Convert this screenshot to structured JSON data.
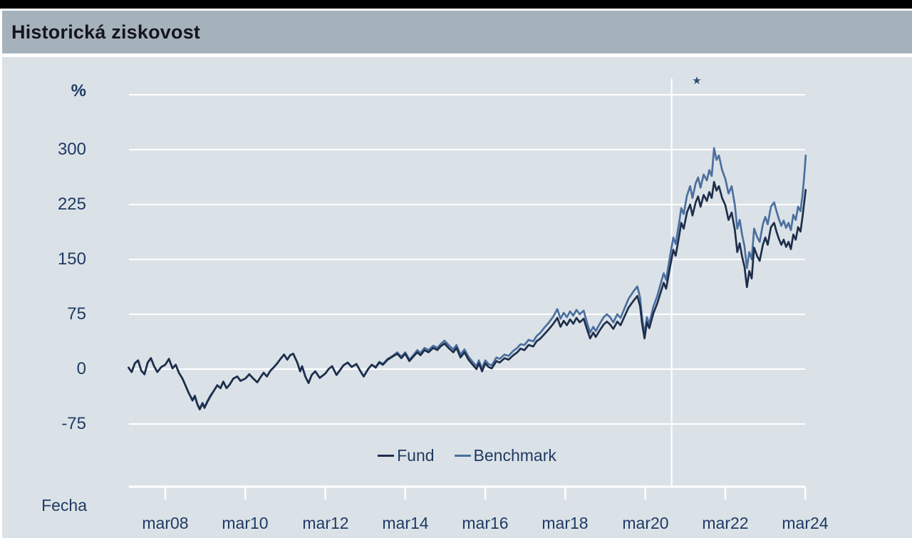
{
  "header": {
    "title": "Historická ziskovost"
  },
  "colors": {
    "topbar": "#000000",
    "header_bg": "#a6b2bb",
    "chart_bg": "#dbe2e7",
    "grid": "#ffffff",
    "axis_text": "#1f3a64",
    "fund_line": "#1d2e4b",
    "benchmark_line": "#4b6f9f"
  },
  "chart_data": {
    "type": "line",
    "title": "Historická ziskovost",
    "ylabel": "%",
    "xlabel": "Fecha",
    "grid": true,
    "legend_position": "bottom-inside",
    "x_tick_labels": [
      "mar08",
      "mar10",
      "mar12",
      "mar14",
      "mar16",
      "mar18",
      "mar20",
      "mar22",
      "mar24"
    ],
    "x_tick_years": [
      2008.2,
      2010.2,
      2012.2,
      2014.2,
      2016.2,
      2018.2,
      2020.2,
      2022.2,
      2024.2
    ],
    "y_ticks": [
      300,
      225,
      150,
      75,
      0,
      -75
    ],
    "grid_values": [
      375,
      300,
      225,
      150,
      75,
      0,
      -75
    ],
    "xlim": [
      2007.28,
      2024.21
    ],
    "ylim": [
      -160,
      375
    ],
    "annotations": {
      "vline_year": 2020.86,
      "star": {
        "symbol": "★",
        "year": 2021.49
      }
    },
    "series": [
      {
        "name": "Fund",
        "color": "#1d2e4b"
      },
      {
        "name": "Benchmark",
        "color": "#4b6f9f"
      }
    ],
    "points": [
      [
        2007.28,
        2,
        2
      ],
      [
        2007.36,
        -4,
        -4
      ],
      [
        2007.44,
        8,
        8
      ],
      [
        2007.52,
        12,
        12
      ],
      [
        2007.6,
        -2,
        -2
      ],
      [
        2007.68,
        -7,
        -7
      ],
      [
        2007.76,
        9,
        9
      ],
      [
        2007.84,
        15,
        15
      ],
      [
        2007.92,
        4,
        4
      ],
      [
        2008.0,
        -4,
        -4
      ],
      [
        2008.1,
        3,
        3
      ],
      [
        2008.2,
        6,
        6
      ],
      [
        2008.29,
        14,
        14
      ],
      [
        2008.38,
        1,
        1
      ],
      [
        2008.46,
        6,
        6
      ],
      [
        2008.54,
        -5,
        -5
      ],
      [
        2008.63,
        -13,
        -13
      ],
      [
        2008.71,
        -23,
        -23
      ],
      [
        2008.79,
        -33,
        -33
      ],
      [
        2008.88,
        -43,
        -42
      ],
      [
        2008.94,
        -37,
        -36
      ],
      [
        2009.0,
        -48,
        -47
      ],
      [
        2009.06,
        -55,
        -54
      ],
      [
        2009.13,
        -47,
        -46
      ],
      [
        2009.18,
        -53,
        -52
      ],
      [
        2009.25,
        -45,
        -44
      ],
      [
        2009.33,
        -37,
        -36
      ],
      [
        2009.42,
        -29,
        -29
      ],
      [
        2009.5,
        -22,
        -22
      ],
      [
        2009.58,
        -26,
        -26
      ],
      [
        2009.65,
        -17,
        -17
      ],
      [
        2009.73,
        -26,
        -26
      ],
      [
        2009.81,
        -21,
        -21
      ],
      [
        2009.9,
        -13,
        -13
      ],
      [
        2010.0,
        -10,
        -10
      ],
      [
        2010.08,
        -16,
        -16
      ],
      [
        2010.2,
        -13,
        -13
      ],
      [
        2010.3,
        -7,
        -7
      ],
      [
        2010.4,
        -13,
        -13
      ],
      [
        2010.5,
        -18,
        -18
      ],
      [
        2010.58,
        -11,
        -11
      ],
      [
        2010.66,
        -5,
        -5
      ],
      [
        2010.74,
        -10,
        -10
      ],
      [
        2010.83,
        -2,
        -2
      ],
      [
        2010.92,
        3,
        3
      ],
      [
        2011.0,
        8,
        8
      ],
      [
        2011.08,
        14,
        14
      ],
      [
        2011.17,
        20,
        20
      ],
      [
        2011.25,
        13,
        13
      ],
      [
        2011.32,
        19,
        19
      ],
      [
        2011.4,
        21,
        21
      ],
      [
        2011.5,
        9,
        9
      ],
      [
        2011.57,
        -3,
        -3
      ],
      [
        2011.62,
        4,
        4
      ],
      [
        2011.7,
        -10,
        -10
      ],
      [
        2011.78,
        -19,
        -19
      ],
      [
        2011.86,
        -8,
        -8
      ],
      [
        2011.95,
        -3,
        -3
      ],
      [
        2012.06,
        -12,
        -12
      ],
      [
        2012.2,
        -6,
        -6
      ],
      [
        2012.28,
        0,
        0
      ],
      [
        2012.37,
        4,
        4
      ],
      [
        2012.48,
        -8,
        -8
      ],
      [
        2012.56,
        -2,
        -2
      ],
      [
        2012.65,
        5,
        5
      ],
      [
        2012.76,
        9,
        9
      ],
      [
        2012.86,
        3,
        3
      ],
      [
        2012.98,
        7,
        7
      ],
      [
        2013.07,
        -2,
        -2
      ],
      [
        2013.16,
        -10,
        -10
      ],
      [
        2013.27,
        0,
        0
      ],
      [
        2013.36,
        6,
        6
      ],
      [
        2013.46,
        2,
        3
      ],
      [
        2013.55,
        9,
        10
      ],
      [
        2013.64,
        6,
        7
      ],
      [
        2013.76,
        13,
        14
      ],
      [
        2013.88,
        17,
        18
      ],
      [
        2014.0,
        21,
        23
      ],
      [
        2014.1,
        15,
        17
      ],
      [
        2014.2,
        21,
        23
      ],
      [
        2014.3,
        11,
        13
      ],
      [
        2014.4,
        17,
        19
      ],
      [
        2014.5,
        23,
        26
      ],
      [
        2014.58,
        19,
        22
      ],
      [
        2014.68,
        26,
        29
      ],
      [
        2014.78,
        23,
        26
      ],
      [
        2014.9,
        29,
        32
      ],
      [
        2015.0,
        26,
        29
      ],
      [
        2015.08,
        31,
        34
      ],
      [
        2015.18,
        35,
        39
      ],
      [
        2015.28,
        29,
        33
      ],
      [
        2015.4,
        23,
        27
      ],
      [
        2015.48,
        29,
        33
      ],
      [
        2015.58,
        16,
        20
      ],
      [
        2015.68,
        23,
        27
      ],
      [
        2015.78,
        13,
        17
      ],
      [
        2015.9,
        5,
        9
      ],
      [
        2015.98,
        0,
        4
      ],
      [
        2016.04,
        8,
        12
      ],
      [
        2016.12,
        -3,
        1
      ],
      [
        2016.2,
        8,
        12
      ],
      [
        2016.28,
        3,
        7
      ],
      [
        2016.36,
        1,
        5
      ],
      [
        2016.48,
        11,
        16
      ],
      [
        2016.56,
        9,
        14
      ],
      [
        2016.68,
        15,
        20
      ],
      [
        2016.78,
        13,
        18
      ],
      [
        2016.9,
        19,
        25
      ],
      [
        2017.0,
        23,
        29
      ],
      [
        2017.08,
        28,
        34
      ],
      [
        2017.18,
        26,
        33
      ],
      [
        2017.28,
        33,
        40
      ],
      [
        2017.4,
        31,
        38
      ],
      [
        2017.48,
        38,
        45
      ],
      [
        2017.58,
        42,
        50
      ],
      [
        2017.68,
        48,
        57
      ],
      [
        2017.78,
        54,
        63
      ],
      [
        2017.9,
        62,
        72
      ],
      [
        2018.0,
        70,
        82
      ],
      [
        2018.08,
        58,
        69
      ],
      [
        2018.16,
        66,
        77
      ],
      [
        2018.24,
        60,
        71
      ],
      [
        2018.32,
        68,
        79
      ],
      [
        2018.4,
        62,
        73
      ],
      [
        2018.48,
        70,
        81
      ],
      [
        2018.56,
        64,
        75
      ],
      [
        2018.66,
        69,
        80
      ],
      [
        2018.74,
        55,
        64
      ],
      [
        2018.82,
        42,
        50
      ],
      [
        2018.9,
        50,
        58
      ],
      [
        2018.96,
        44,
        52
      ],
      [
        2019.06,
        53,
        62
      ],
      [
        2019.16,
        61,
        71
      ],
      [
        2019.24,
        65,
        75
      ],
      [
        2019.32,
        61,
        71
      ],
      [
        2019.4,
        55,
        64
      ],
      [
        2019.5,
        65,
        75
      ],
      [
        2019.58,
        60,
        70
      ],
      [
        2019.68,
        72,
        83
      ],
      [
        2019.78,
        84,
        96
      ],
      [
        2019.9,
        93,
        106
      ],
      [
        2020.0,
        100,
        113
      ],
      [
        2020.07,
        86,
        98
      ],
      [
        2020.12,
        62,
        70
      ],
      [
        2020.18,
        42,
        47
      ],
      [
        2020.24,
        64,
        71
      ],
      [
        2020.3,
        56,
        62
      ],
      [
        2020.4,
        76,
        85
      ],
      [
        2020.5,
        90,
        100
      ],
      [
        2020.58,
        104,
        116
      ],
      [
        2020.66,
        118,
        131
      ],
      [
        2020.72,
        110,
        122
      ],
      [
        2020.82,
        140,
        155
      ],
      [
        2020.9,
        163,
        180
      ],
      [
        2020.96,
        155,
        171
      ],
      [
        2021.04,
        180,
        198
      ],
      [
        2021.1,
        200,
        220
      ],
      [
        2021.16,
        192,
        212
      ],
      [
        2021.24,
        214,
        237
      ],
      [
        2021.32,
        225,
        250
      ],
      [
        2021.38,
        210,
        234
      ],
      [
        2021.46,
        228,
        254
      ],
      [
        2021.52,
        236,
        262
      ],
      [
        2021.58,
        222,
        248
      ],
      [
        2021.66,
        238,
        266
      ],
      [
        2021.74,
        230,
        258
      ],
      [
        2021.8,
        242,
        272
      ],
      [
        2021.86,
        234,
        264
      ],
      [
        2021.92,
        256,
        302
      ],
      [
        2021.98,
        244,
        286
      ],
      [
        2022.04,
        250,
        292
      ],
      [
        2022.12,
        234,
        272
      ],
      [
        2022.2,
        224,
        260
      ],
      [
        2022.28,
        204,
        240
      ],
      [
        2022.36,
        214,
        250
      ],
      [
        2022.44,
        190,
        224
      ],
      [
        2022.5,
        160,
        192
      ],
      [
        2022.56,
        172,
        204
      ],
      [
        2022.62,
        154,
        184
      ],
      [
        2022.68,
        140,
        168
      ],
      [
        2022.74,
        112,
        138
      ],
      [
        2022.8,
        134,
        160
      ],
      [
        2022.86,
        124,
        150
      ],
      [
        2022.92,
        166,
        192
      ],
      [
        2023.0,
        154,
        180
      ],
      [
        2023.06,
        148,
        174
      ],
      [
        2023.14,
        170,
        198
      ],
      [
        2023.2,
        180,
        208
      ],
      [
        2023.26,
        170,
        198
      ],
      [
        2023.34,
        194,
        222
      ],
      [
        2023.42,
        200,
        228
      ],
      [
        2023.48,
        188,
        216
      ],
      [
        2023.54,
        178,
        205
      ],
      [
        2023.6,
        170,
        196
      ],
      [
        2023.66,
        177,
        203
      ],
      [
        2023.72,
        167,
        193
      ],
      [
        2023.78,
        174,
        200
      ],
      [
        2023.84,
        164,
        190
      ],
      [
        2023.9,
        184,
        211
      ],
      [
        2023.96,
        177,
        204
      ],
      [
        2024.02,
        194,
        222
      ],
      [
        2024.08,
        188,
        216
      ],
      [
        2024.13,
        208,
        238
      ],
      [
        2024.16,
        222,
        256
      ],
      [
        2024.19,
        236,
        276
      ],
      [
        2024.21,
        245,
        292
      ]
    ]
  }
}
